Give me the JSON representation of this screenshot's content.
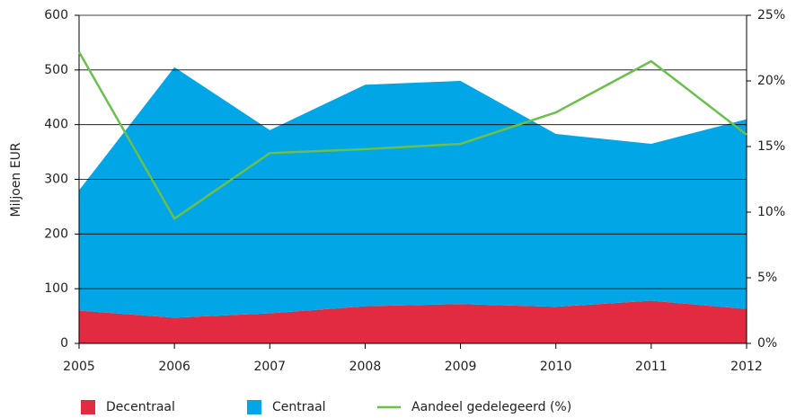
{
  "chart_data": {
    "type": "area",
    "y_label": "Miljoen EUR",
    "x": [
      2005,
      2006,
      2007,
      2008,
      2009,
      2010,
      2011,
      2012
    ],
    "xlim": [
      2005,
      2012
    ],
    "xticks": [
      2005,
      2006,
      2007,
      2008,
      2009,
      2010,
      2011,
      2012
    ],
    "ylim": [
      0,
      600
    ],
    "yticks": [
      0,
      100,
      200,
      300,
      400,
      500,
      600
    ],
    "y2lim": [
      0,
      25
    ],
    "y2ticks": [
      {
        "value": 0,
        "label": "0%"
      },
      {
        "value": 5,
        "label": "5%"
      },
      {
        "value": 10,
        "label": "10%"
      },
      {
        "value": 15,
        "label": "15%"
      },
      {
        "value": 20,
        "label": "20%"
      },
      {
        "value": 25,
        "label": "25%"
      }
    ],
    "grid": true,
    "legend": "bottom",
    "series": [
      {
        "name": "Decentraal",
        "color": "#e22b40",
        "values": [
          60,
          47,
          55,
          68,
          72,
          67,
          78,
          63
        ]
      },
      {
        "name": "Centraal",
        "color": "#00a6e6",
        "values": [
          220,
          458,
          335,
          405,
          408,
          316,
          287,
          347
        ]
      },
      {
        "name": "Aandeel gedelegeerd (%)",
        "color": "#6ac04a",
        "type": "line",
        "axis": "y2",
        "values": [
          22.2,
          9.5,
          14.5,
          14.8,
          15.2,
          17.6,
          21.5,
          15.9
        ]
      }
    ]
  }
}
